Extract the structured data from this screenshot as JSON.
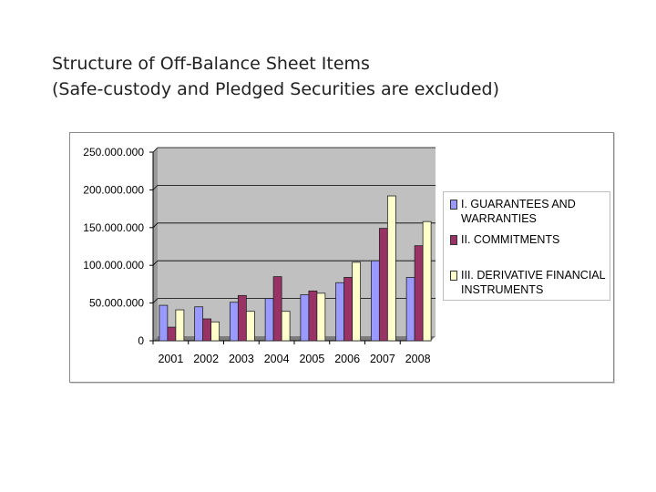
{
  "slide": {
    "title_line1": "Structure of Off-Balance Sheet Items",
    "title_line2": "(Safe-custody and Pledged Securities are excluded)"
  },
  "chart_data": {
    "type": "bar",
    "categories": [
      "2001",
      "2002",
      "2003",
      "2004",
      "2005",
      "2006",
      "2007",
      "2008"
    ],
    "series": [
      {
        "name": "I. GUARANTEES AND WARRANTIES",
        "color": "#9999ff",
        "values": [
          47000000,
          45000000,
          51000000,
          56000000,
          61000000,
          77000000,
          106000000,
          84000000
        ]
      },
      {
        "name": "II. COMMITMENTS",
        "color": "#993366",
        "values": [
          18000000,
          29000000,
          60000000,
          85000000,
          66000000,
          84000000,
          149000000,
          126000000
        ]
      },
      {
        "name": "III. DERIVATIVE FINANCIAL INSTRUMENTS",
        "color": "#ffffcc",
        "values": [
          41000000,
          25000000,
          39000000,
          39000000,
          63000000,
          104000000,
          192000000,
          158000000
        ]
      }
    ],
    "ylim": [
      0,
      250000000
    ],
    "yticks": [
      {
        "value": 0,
        "label": "0"
      },
      {
        "value": 50000000,
        "label": "50.000.000"
      },
      {
        "value": 100000000,
        "label": "100.000.000"
      },
      {
        "value": 150000000,
        "label": "150.000.000"
      },
      {
        "value": 200000000,
        "label": "200.000.000"
      },
      {
        "value": 250000000,
        "label": "250.000.000"
      }
    ],
    "grid": true,
    "plot_background": "#c0c0c0",
    "legend_position": "right"
  }
}
